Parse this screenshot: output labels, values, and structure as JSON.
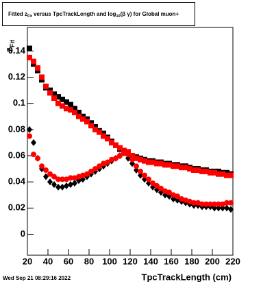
{
  "chart_data": {
    "type": "scatter",
    "title_parts": [
      "Fitted  z",
      "Fit",
      "  versus TpcTrackLength and log",
      "10",
      "(β  γ) for Global muon+"
    ],
    "y_label_parts": [
      "z",
      "Fit"
    ],
    "x_label": "TpcTrackLength (cm)",
    "footer": "Wed Sep 21 08:29:16 2022",
    "x": [
      22,
      26,
      30,
      34,
      38,
      42,
      46,
      50,
      54,
      58,
      62,
      66,
      70,
      74,
      78,
      82,
      86,
      90,
      94,
      98,
      102,
      106,
      110,
      114,
      118,
      122,
      126,
      130,
      134,
      138,
      142,
      146,
      150,
      154,
      158,
      162,
      166,
      170,
      174,
      178,
      182,
      186,
      190,
      194,
      198,
      202,
      206,
      210,
      214,
      218
    ],
    "xlim": [
      20,
      220
    ],
    "xticks": [
      20,
      40,
      60,
      80,
      100,
      120,
      140,
      160,
      180,
      200,
      220
    ],
    "ylim": [
      -0.016,
      0.158
    ],
    "yticks": [
      0,
      0.02,
      0.04,
      0.06,
      0.08,
      0.1,
      0.12,
      0.14
    ],
    "series": [
      {
        "color": "#000000",
        "marker": "square",
        "values": [
          0.142,
          0.13,
          0.125,
          0.118,
          0.112,
          0.11,
          0.107,
          0.105,
          0.103,
          0.101,
          0.099,
          0.096,
          0.093,
          0.09,
          0.088,
          0.085,
          0.082,
          0.079,
          0.077,
          0.074,
          0.071,
          0.068,
          0.065,
          0.063,
          0.062,
          0.06,
          0.059,
          0.058,
          0.057,
          0.056,
          0.056,
          0.055,
          0.055,
          0.054,
          0.054,
          0.053,
          0.053,
          0.052,
          0.052,
          0.051,
          0.05,
          0.05,
          0.049,
          0.049,
          0.048,
          0.048,
          0.048,
          0.047,
          0.047,
          0.046
        ]
      },
      {
        "color": "#ff0000",
        "marker": "square",
        "values": [
          0.135,
          0.132,
          0.127,
          0.12,
          0.113,
          0.108,
          0.104,
          0.1,
          0.098,
          0.096,
          0.095,
          0.093,
          0.09,
          0.088,
          0.086,
          0.083,
          0.08,
          0.078,
          0.075,
          0.073,
          0.07,
          0.068,
          0.066,
          0.064,
          0.063,
          0.06,
          0.058,
          0.057,
          0.056,
          0.055,
          0.055,
          0.054,
          0.054,
          0.053,
          0.053,
          0.052,
          0.052,
          0.051,
          0.051,
          0.05,
          0.049,
          0.049,
          0.048,
          0.048,
          0.047,
          0.047,
          0.046,
          0.046,
          0.045,
          0.045
        ]
      },
      {
        "color": "#000000",
        "marker": "diamond",
        "values": [
          0.08,
          0.07,
          0.058,
          0.05,
          0.044,
          0.04,
          0.038,
          0.036,
          0.036,
          0.037,
          0.038,
          0.039,
          0.041,
          0.042,
          0.044,
          0.046,
          0.048,
          0.05,
          0.052,
          0.054,
          0.056,
          0.058,
          0.06,
          0.062,
          0.058,
          0.054,
          0.049,
          0.045,
          0.042,
          0.039,
          0.036,
          0.034,
          0.032,
          0.03,
          0.029,
          0.027,
          0.026,
          0.025,
          0.024,
          0.023,
          0.022,
          0.022,
          0.021,
          0.021,
          0.021,
          0.02,
          0.02,
          0.02,
          0.02,
          0.019
        ]
      },
      {
        "color": "#ff0000",
        "marker": "circle",
        "values": [
          0.075,
          0.061,
          0.058,
          0.052,
          0.049,
          0.046,
          0.044,
          0.042,
          0.042,
          0.042,
          0.043,
          0.043,
          0.044,
          0.045,
          0.046,
          0.048,
          0.05,
          0.052,
          0.054,
          0.055,
          0.057,
          0.058,
          0.06,
          0.062,
          0.061,
          0.057,
          0.052,
          0.048,
          0.045,
          0.042,
          0.039,
          0.037,
          0.035,
          0.033,
          0.032,
          0.03,
          0.029,
          0.027,
          0.026,
          0.025,
          0.024,
          0.024,
          0.023,
          0.023,
          0.023,
          0.023,
          0.023,
          0.023,
          0.024,
          0.024
        ]
      }
    ]
  }
}
